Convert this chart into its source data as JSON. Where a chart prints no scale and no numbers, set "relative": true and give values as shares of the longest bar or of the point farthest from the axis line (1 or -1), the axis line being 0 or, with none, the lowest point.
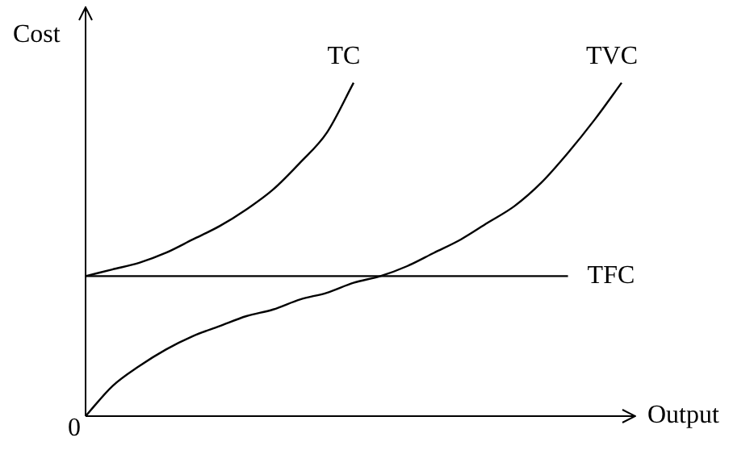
{
  "chart_data": {
    "type": "line",
    "relative": true,
    "xlabel": "Output",
    "ylabel": "Cost",
    "annotations": [
      "0"
    ],
    "legend": false,
    "grid": false,
    "marker": "none",
    "line_style": "solid",
    "categories": [
      null,
      null,
      null,
      null,
      null,
      null,
      null,
      null,
      null,
      null,
      null,
      null,
      null,
      null,
      null,
      null,
      null,
      null,
      null,
      null,
      null
    ],
    "series": [
      {
        "name": "TC",
        "color": "#000000",
        "values": [
          0.42,
          0.44,
          0.46,
          0.49,
          0.53,
          0.57,
          0.62,
          0.68,
          0.76,
          0.85,
          1,
          null,
          null,
          null,
          null,
          null,
          null,
          null,
          null,
          null,
          null
        ]
      },
      {
        "name": "TVC",
        "color": "#000000",
        "values": [
          0,
          0.09,
          0.15,
          0.2,
          0.24,
          0.27,
          0.3,
          0.32,
          0.35,
          0.37,
          0.4,
          0.42,
          0.45,
          0.49,
          0.53,
          0.58,
          0.63,
          0.7,
          0.79,
          0.89,
          1
        ]
      },
      {
        "name": "TFC",
        "color": "#000000",
        "values": [
          0.42,
          0.42,
          0.42,
          0.42,
          0.42,
          0.42,
          0.42,
          0.42,
          0.42,
          0.42,
          0.42,
          0.42,
          0.42,
          0.42,
          0.42,
          0.42,
          0.42,
          0.42,
          0.42,
          null,
          null
        ]
      }
    ]
  }
}
